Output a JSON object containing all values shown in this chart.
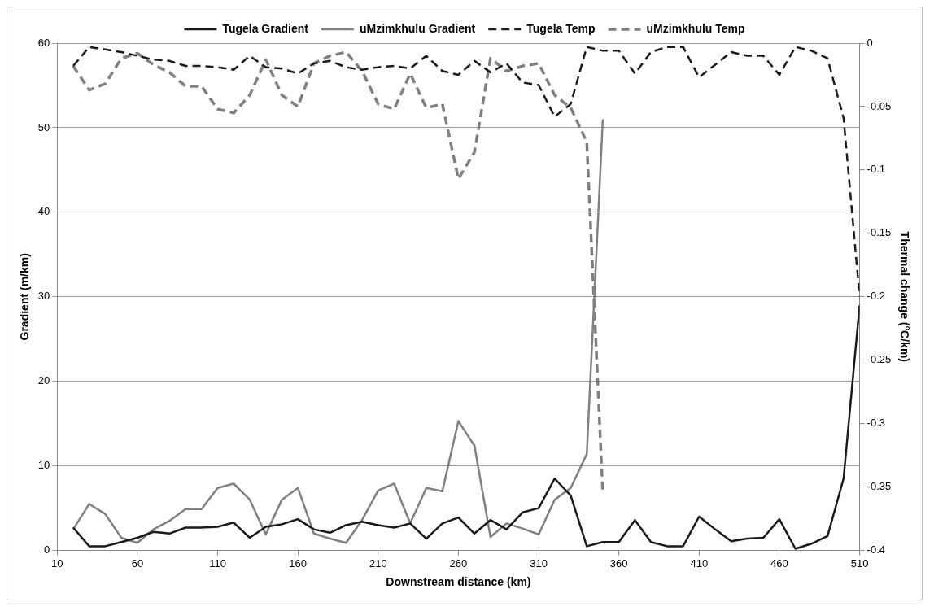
{
  "chart_data": {
    "type": "line",
    "xlabel": "Downstream distance (km)",
    "ylabel": "Gradient (m/km)",
    "y2label": "Thermal change (°C/km)",
    "xlim": [
      10,
      510
    ],
    "xticks": [
      10,
      60,
      110,
      160,
      210,
      260,
      310,
      360,
      410,
      460,
      510
    ],
    "ylim": [
      0,
      60
    ],
    "yticks": [
      0,
      10,
      20,
      30,
      40,
      50,
      60
    ],
    "y2lim": [
      -0.4,
      0
    ],
    "y2ticks": [
      -0.4,
      -0.35,
      -0.3,
      -0.25,
      -0.2,
      -0.15,
      -0.1,
      -0.05,
      0
    ],
    "grid": "y",
    "legend": "top",
    "series": [
      {
        "name": "Tugela Gradient",
        "color": "#1a1a1a",
        "line_style": "solid",
        "x": [
          20,
          30,
          40,
          50,
          60,
          70,
          80,
          90,
          100,
          110,
          120,
          130,
          140,
          150,
          160,
          170,
          180,
          190,
          200,
          210,
          220,
          230,
          240,
          250,
          260,
          270,
          280,
          290,
          300,
          310,
          320,
          330,
          340,
          350,
          360,
          370,
          380,
          390,
          400,
          410,
          420,
          430,
          440,
          450,
          460,
          470,
          480,
          490,
          500,
          510
        ],
        "values": [
          2.7,
          0.5,
          0.5,
          1.0,
          1.5,
          2.2,
          2.0,
          2.7,
          2.7,
          2.8,
          3.3,
          1.5,
          2.8,
          3.1,
          3.7,
          2.5,
          2.1,
          3.0,
          3.4,
          3.0,
          2.7,
          3.2,
          1.4,
          3.2,
          3.9,
          2.0,
          3.6,
          2.5,
          4.5,
          5.0,
          8.5,
          6.5,
          0.5,
          1.0,
          1.0,
          3.6,
          1.0,
          0.5,
          0.5,
          4.0,
          2.5,
          1.1,
          1.4,
          1.5,
          3.7,
          0.2,
          0.8,
          1.7,
          8.5,
          29
        ]
      },
      {
        "name": "uMzimkhulu Gradient",
        "color": "#808080",
        "line_style": "solid",
        "x": [
          20,
          30,
          40,
          50,
          60,
          70,
          80,
          90,
          100,
          110,
          120,
          130,
          140,
          150,
          160,
          170,
          180,
          190,
          200,
          210,
          220,
          230,
          240,
          250,
          260,
          270,
          280,
          290,
          300,
          310,
          320,
          330,
          340,
          350
        ],
        "values": [
          2.5,
          5.5,
          4.3,
          1.5,
          0.9,
          2.5,
          3.5,
          4.9,
          4.9,
          7.4,
          7.9,
          6.0,
          1.9,
          6.0,
          7.4,
          2.0,
          1.4,
          0.9,
          3.6,
          7.1,
          7.9,
          3.2,
          7.4,
          7.0,
          15.3,
          12.4,
          1.6,
          3.2,
          2.6,
          1.9,
          6.0,
          7.4,
          11.4,
          51
        ]
      },
      {
        "name": "Tugela Temp",
        "color": "#1a1a1a",
        "line_style": "dashed",
        "axis": "y2",
        "x": [
          20,
          30,
          40,
          50,
          60,
          70,
          80,
          90,
          100,
          110,
          120,
          130,
          140,
          150,
          160,
          170,
          180,
          190,
          200,
          210,
          220,
          230,
          240,
          250,
          260,
          270,
          280,
          290,
          300,
          310,
          320,
          330,
          340,
          350,
          360,
          370,
          380,
          390,
          400,
          410,
          420,
          430,
          440,
          450,
          460,
          470,
          480,
          490,
          500,
          510
        ],
        "values": [
          -0.018,
          -0.003,
          -0.005,
          -0.007,
          -0.01,
          -0.013,
          -0.014,
          -0.018,
          -0.018,
          -0.019,
          -0.021,
          -0.01,
          -0.019,
          -0.02,
          -0.024,
          -0.016,
          -0.014,
          -0.019,
          -0.021,
          -0.019,
          -0.018,
          -0.02,
          -0.01,
          -0.022,
          -0.025,
          -0.014,
          -0.023,
          -0.016,
          -0.031,
          -0.033,
          -0.058,
          -0.048,
          -0.003,
          -0.006,
          -0.006,
          -0.024,
          -0.007,
          -0.003,
          -0.003,
          -0.027,
          -0.017,
          -0.007,
          -0.01,
          -0.01,
          -0.025,
          -0.003,
          -0.006,
          -0.012,
          -0.059,
          -0.2
        ]
      },
      {
        "name": "uMzimkhulu Temp",
        "color": "#808080",
        "line_style": "dashed",
        "axis": "y2",
        "x": [
          20,
          30,
          40,
          50,
          60,
          70,
          80,
          90,
          100,
          110,
          120,
          130,
          140,
          150,
          160,
          170,
          180,
          190,
          200,
          210,
          220,
          230,
          240,
          250,
          260,
          270,
          280,
          290,
          300,
          310,
          320,
          330,
          340,
          350
        ],
        "values": [
          -0.018,
          -0.037,
          -0.032,
          -0.012,
          -0.008,
          -0.017,
          -0.023,
          -0.034,
          -0.034,
          -0.052,
          -0.055,
          -0.041,
          -0.013,
          -0.041,
          -0.05,
          -0.016,
          -0.01,
          -0.007,
          -0.022,
          -0.048,
          -0.052,
          -0.024,
          -0.051,
          -0.048,
          -0.107,
          -0.086,
          -0.012,
          -0.022,
          -0.018,
          -0.016,
          -0.041,
          -0.051,
          -0.078,
          -0.355
        ]
      }
    ]
  }
}
